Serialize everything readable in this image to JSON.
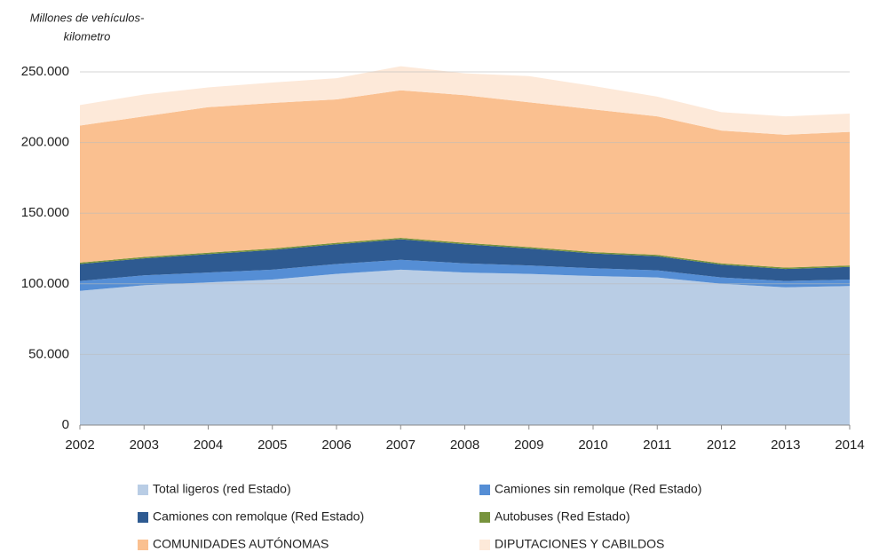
{
  "chart_data": {
    "type": "stacked_area",
    "y_label": [
      "Millones de vehículos-",
      "kilometro"
    ],
    "categories": [
      "2002",
      "2003",
      "2004",
      "2005",
      "2006",
      "2007",
      "2008",
      "2009",
      "2010",
      "2011",
      "2012",
      "2013",
      "2014"
    ],
    "ylim": [
      0,
      250000
    ],
    "yticks": [
      0,
      {
        "value": 50000,
        "label": "50.000"
      },
      {
        "value": 100000,
        "label": "100.000"
      },
      {
        "value": 150000,
        "label": "150.000"
      },
      {
        "value": 200000,
        "label": "200.000"
      },
      {
        "value": 250000,
        "label": "250.000"
      }
    ],
    "grid": true,
    "series": [
      {
        "name": "Total ligeros (red Estado)",
        "color": "#b9cde5",
        "values": [
          95000,
          99000,
          101000,
          103000,
          107000,
          110000,
          108000,
          107000,
          105500,
          104500,
          100000,
          97500,
          98500
        ]
      },
      {
        "name": "Camiones sin remolque (Red Estado)",
        "color": "#558ed5",
        "values": [
          7000,
          7000,
          7000,
          7000,
          7000,
          7000,
          6500,
          6000,
          5500,
          5000,
          4500,
          4500,
          4500
        ]
      },
      {
        "name": "Camiones con remolque (Red Estado)",
        "color": "#2e5a91",
        "values": [
          12000,
          12000,
          13000,
          14000,
          14000,
          14500,
          13500,
          12000,
          10500,
          10000,
          9000,
          8500,
          9000
        ]
      },
      {
        "name": "Autobuses (Red Estado)",
        "color": "#77933c",
        "values": [
          1000,
          1000,
          1000,
          1000,
          1000,
          1000,
          1000,
          1000,
          1000,
          1000,
          1000,
          1000,
          1000
        ]
      },
      {
        "name": "COMUNIDADES AUTÓNOMAS",
        "color": "#fac090",
        "values": [
          97000,
          99500,
          103000,
          103000,
          101500,
          104500,
          104500,
          102500,
          101000,
          98000,
          94000,
          94000,
          94500
        ]
      },
      {
        "name": "DIPUTACIONES Y CABILDOS",
        "color": "#fde9d9",
        "values": [
          14500,
          15500,
          14000,
          14500,
          15000,
          17000,
          15500,
          18500,
          16500,
          14000,
          13000,
          13000,
          13000
        ]
      }
    ]
  }
}
